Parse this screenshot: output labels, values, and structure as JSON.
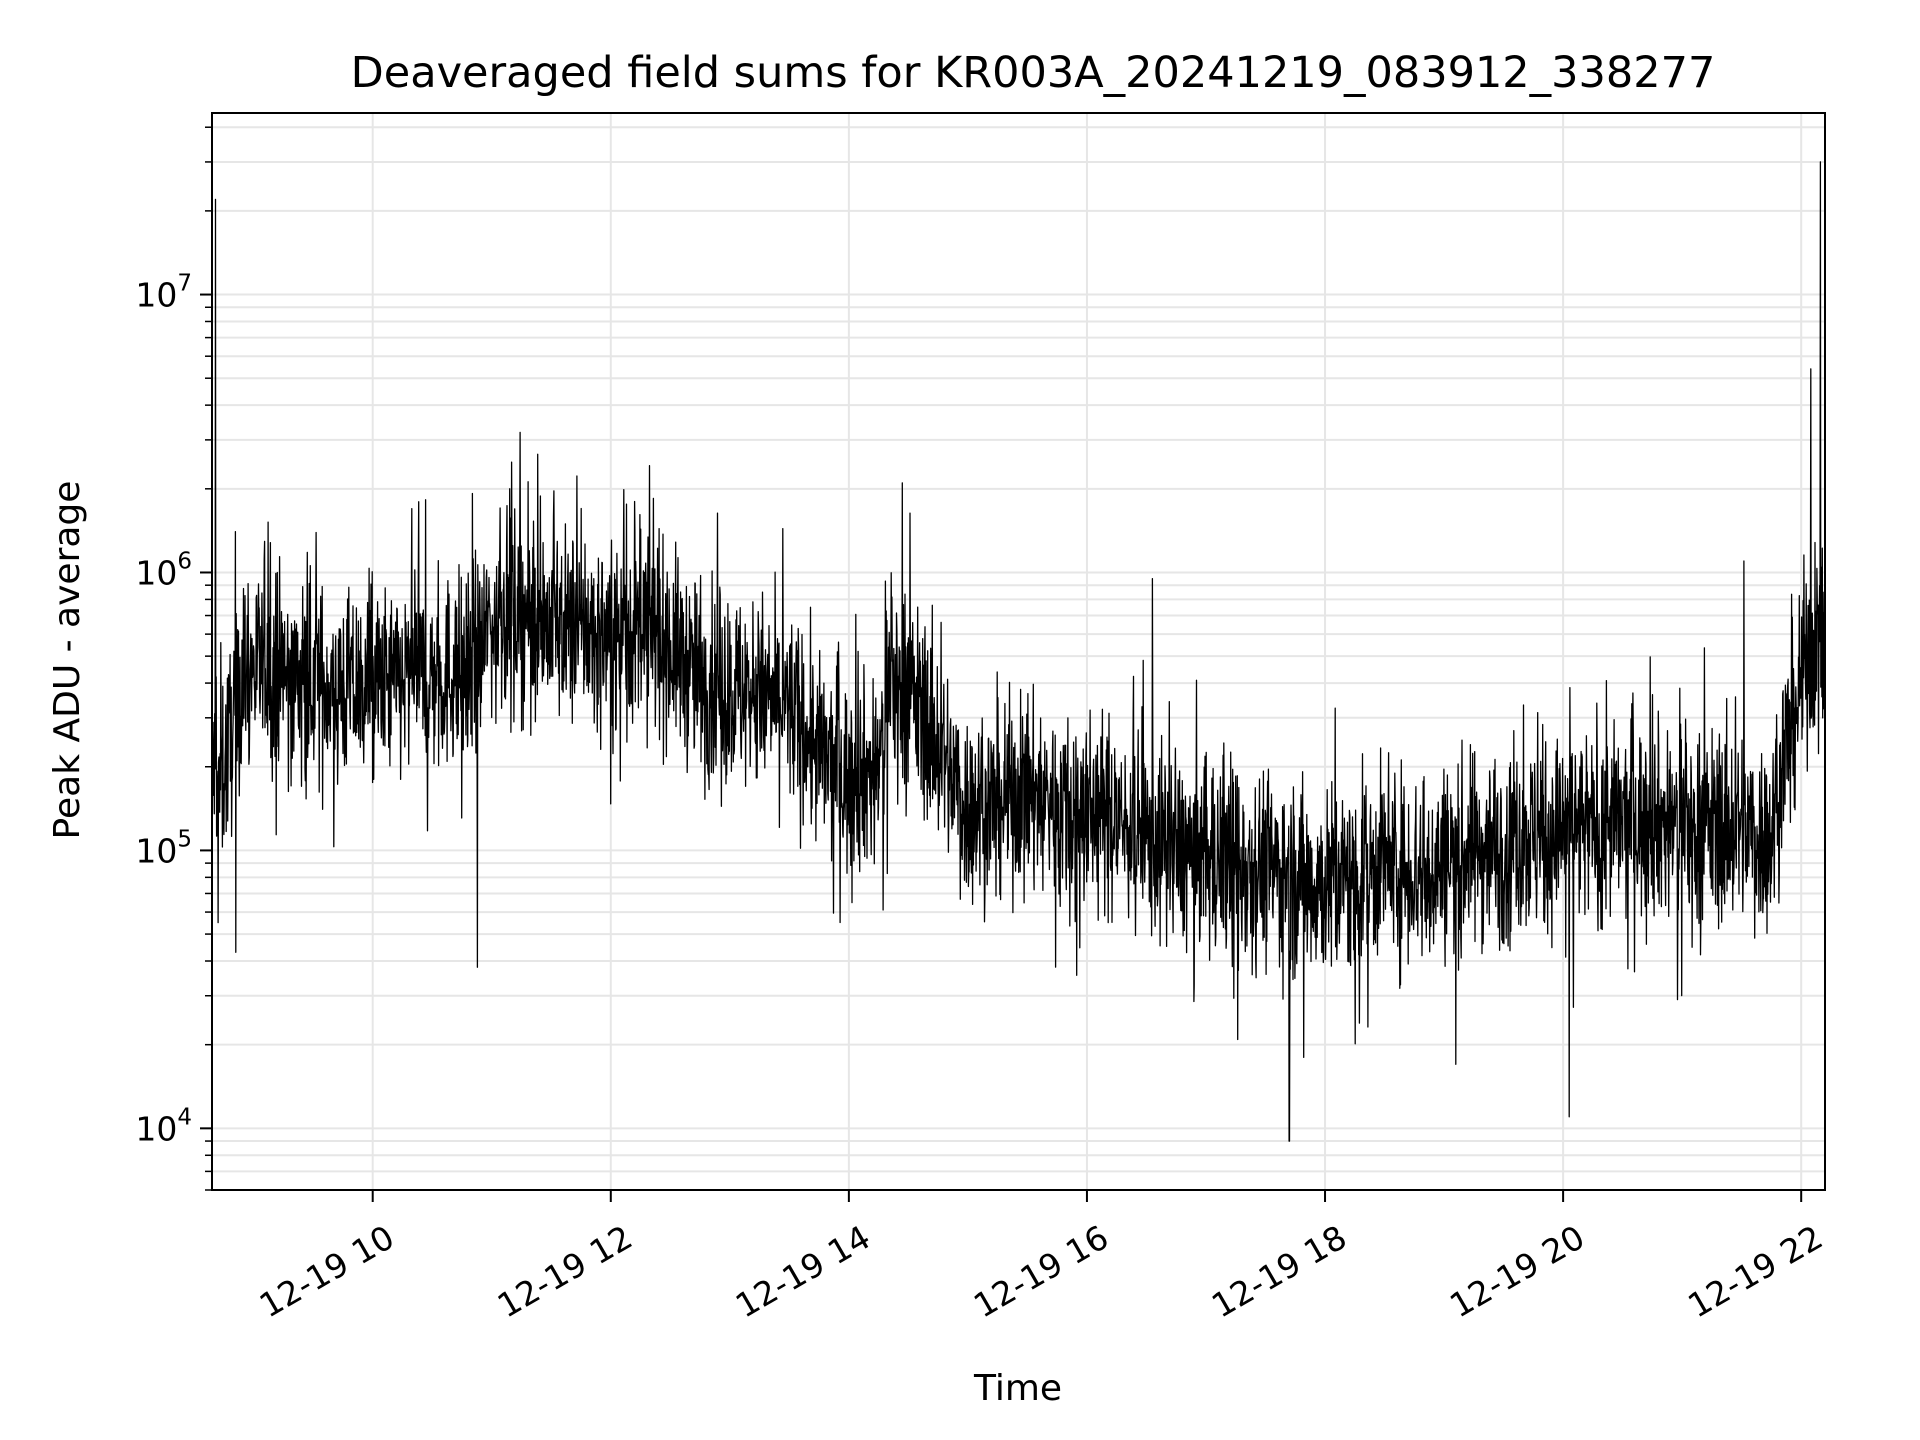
{
  "chart_data": {
    "type": "line",
    "title": "Deaveraged field sums for KR003A_20241219_083912_338277",
    "xlabel": "Time",
    "ylabel": "Peak ADU - average",
    "yscale": "log",
    "ylim": [
      6000,
      45000000
    ],
    "xlim_hours": [
      8.65,
      22.2
    ],
    "grid": true,
    "color": "#000000",
    "x_ticks": [
      {
        "hour": 10,
        "label": "12-19 10"
      },
      {
        "hour": 12,
        "label": "12-19 12"
      },
      {
        "hour": 14,
        "label": "12-19 14"
      },
      {
        "hour": 16,
        "label": "12-19 16"
      },
      {
        "hour": 18,
        "label": "12-19 18"
      },
      {
        "hour": 20,
        "label": "12-19 20"
      },
      {
        "hour": 22,
        "label": "12-19 22"
      }
    ],
    "y_ticks": [
      {
        "exp": 4,
        "label": "10",
        "sup": "4"
      },
      {
        "exp": 5,
        "label": "10",
        "sup": "5"
      },
      {
        "exp": 6,
        "label": "10",
        "sup": "6"
      },
      {
        "exp": 7,
        "label": "10",
        "sup": "7"
      }
    ],
    "series": [
      {
        "name": "Peak ADU - average",
        "x_hours": [
          8.65,
          8.72,
          8.8,
          8.9,
          9.0,
          9.25,
          9.5,
          9.75,
          10.0,
          10.25,
          10.5,
          10.75,
          10.9,
          11.0,
          11.25,
          11.5,
          11.75,
          12.0,
          12.25,
          12.5,
          12.75,
          13.0,
          13.25,
          13.5,
          13.75,
          14.0,
          14.25,
          14.35,
          14.5,
          14.7,
          14.85,
          15.0,
          15.25,
          15.5,
          15.75,
          16.0,
          16.25,
          16.5,
          16.75,
          17.0,
          17.25,
          17.5,
          17.75,
          18.0,
          18.25,
          18.5,
          18.75,
          19.0,
          19.25,
          19.5,
          19.75,
          20.0,
          20.25,
          20.5,
          20.75,
          21.0,
          21.25,
          21.5,
          21.75,
          21.85,
          21.95,
          22.05,
          22.15,
          22.2
        ],
        "y_base": [
          200000,
          180000,
          250000,
          420000,
          450000,
          430000,
          400000,
          380000,
          390000,
          400000,
          420000,
          450000,
          500000,
          700000,
          720000,
          650000,
          620000,
          600000,
          620000,
          550000,
          400000,
          380000,
          360000,
          330000,
          220000,
          180000,
          200000,
          420000,
          380000,
          260000,
          190000,
          140000,
          150000,
          160000,
          150000,
          140000,
          130000,
          110000,
          100000,
          95000,
          90000,
          88000,
          80000,
          75000,
          80000,
          90000,
          85000,
          90000,
          100000,
          105000,
          110000,
          115000,
          120000,
          125000,
          130000,
          125000,
          120000,
          120000,
          110000,
          220000,
          320000,
          500000,
          550000,
          520000
        ],
        "spikes": [
          {
            "hour": 8.68,
            "value": 22000000
          },
          {
            "hour": 8.85,
            "value": 43000
          },
          {
            "hour": 10.88,
            "value": 38000
          },
          {
            "hour": 11.15,
            "value": 2000000
          },
          {
            "hour": 12.2,
            "value": 1800000
          },
          {
            "hour": 14.45,
            "value": 2100000
          },
          {
            "hour": 16.55,
            "value": 950000
          },
          {
            "hour": 17.7,
            "value": 9000
          },
          {
            "hour": 17.82,
            "value": 18000
          },
          {
            "hour": 19.1,
            "value": 17000
          },
          {
            "hour": 20.05,
            "value": 11000
          },
          {
            "hour": 21.52,
            "value": 1100000
          },
          {
            "hour": 22.08,
            "value": 5400000
          },
          {
            "hour": 22.16,
            "value": 30000000
          }
        ]
      }
    ]
  }
}
